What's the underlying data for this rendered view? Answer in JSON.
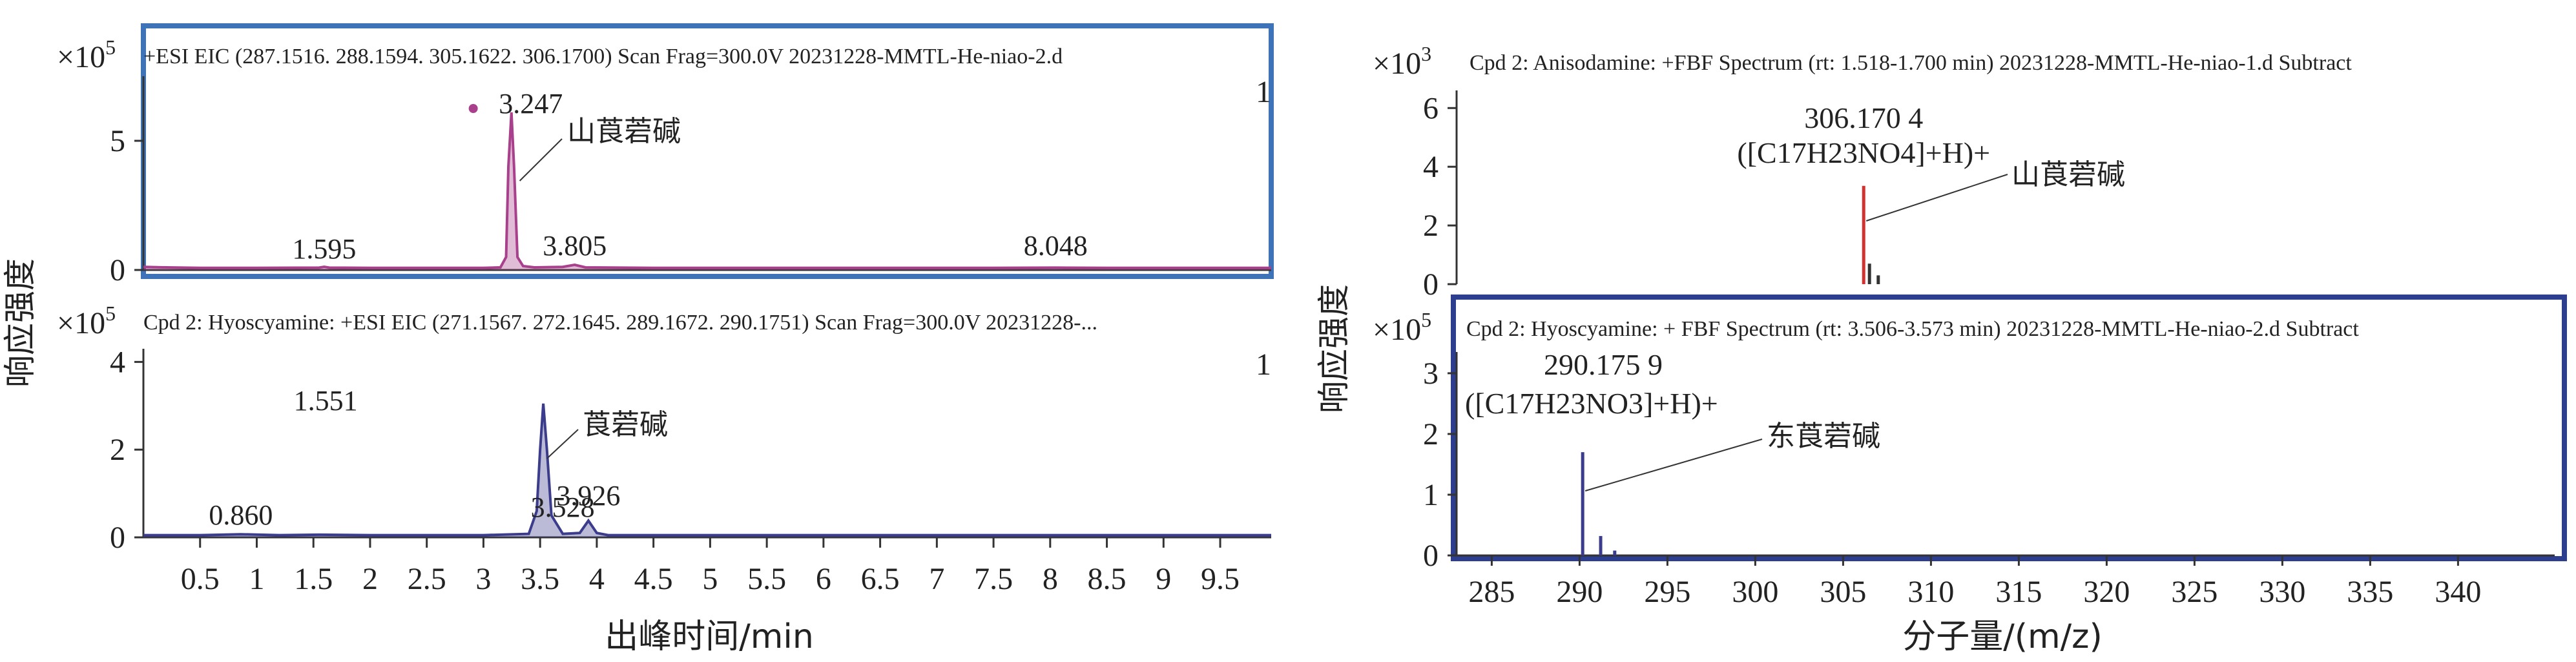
{
  "colors": {
    "chrom1": "#a8408c",
    "chrom2": "#3c3c8c",
    "spec1": "#d03232",
    "spec2": "#3c3c8c",
    "frame1": "#3f73b7",
    "frame2": "#2e3e8e",
    "axis": "#333333"
  },
  "left": {
    "ylabel": "响应强度",
    "xlabel": "出峰时间/min"
  },
  "right": {
    "ylabel": "响应强度",
    "xlabel": "分子量/(m/z)"
  },
  "chart_data": [
    {
      "type": "line",
      "id": "chrom-top",
      "title": "+ESI EIC (287.1516. 288.1594. 305.1622. 306.1700) Scan Frag=300.0V 20231228-MMTL-He-niao-2.d",
      "scale": "×10^5",
      "scale_base": "×10",
      "scale_exp": "5",
      "xlim": [
        0,
        9.95
      ],
      "ylim": [
        0,
        7.5
      ],
      "yticks": [
        0,
        5
      ],
      "series": [
        {
          "color_key": "chrom1",
          "x": [
            0.0,
            0.2,
            0.5,
            1.0,
            1.55,
            1.595,
            1.64,
            2.0,
            2.5,
            3.0,
            3.15,
            3.2,
            3.22,
            3.247,
            3.27,
            3.3,
            3.35,
            3.45,
            3.7,
            3.805,
            3.9,
            4.5,
            5.5,
            6.5,
            7.5,
            8.048,
            8.5,
            9.5,
            9.95
          ],
          "y": [
            0.12,
            0.1,
            0.08,
            0.08,
            0.09,
            0.12,
            0.09,
            0.08,
            0.08,
            0.08,
            0.1,
            0.5,
            4.0,
            6.1,
            4.0,
            0.5,
            0.15,
            0.1,
            0.12,
            0.2,
            0.1,
            0.08,
            0.08,
            0.08,
            0.08,
            0.09,
            0.08,
            0.08,
            0.08
          ]
        }
      ],
      "peak_labels": [
        {
          "x": 1.595,
          "text": "1.595"
        },
        {
          "x": 3.247,
          "text": "3.247"
        },
        {
          "x": 3.805,
          "text": "3.805"
        },
        {
          "x": 8.048,
          "text": "8.048"
        }
      ],
      "annotation": "山莨菪碱",
      "edge_marker": "1"
    },
    {
      "type": "line",
      "id": "chrom-bottom",
      "title": "Cpd 2: Hyoscyamine: +ESI EIC (271.1567. 272.1645. 289.1672. 290.1751) Scan Frag=300.0V 20231228-...",
      "scale": "×10^5",
      "scale_base": "×10",
      "scale_exp": "5",
      "xlim": [
        0,
        9.95
      ],
      "ylim": [
        0,
        4.3
      ],
      "yticks": [
        0,
        2,
        4
      ],
      "xticks": [
        0.5,
        1,
        1.5,
        2,
        2.5,
        3,
        3.5,
        4,
        4.5,
        5,
        5.5,
        6,
        6.5,
        7,
        7.5,
        8,
        8.5,
        9,
        9.5
      ],
      "series": [
        {
          "color_key": "chrom2",
          "x": [
            0.0,
            0.5,
            0.86,
            1.2,
            1.551,
            2.0,
            2.5,
            3.0,
            3.4,
            3.47,
            3.5,
            3.528,
            3.56,
            3.6,
            3.7,
            3.85,
            3.926,
            4.0,
            4.1,
            4.5,
            5.5,
            6.5,
            7.5,
            8.5,
            9.5,
            9.95
          ],
          "y": [
            0.05,
            0.05,
            0.07,
            0.05,
            0.06,
            0.05,
            0.05,
            0.05,
            0.08,
            0.6,
            2.0,
            3.05,
            2.0,
            0.5,
            0.08,
            0.1,
            0.38,
            0.1,
            0.05,
            0.05,
            0.05,
            0.05,
            0.05,
            0.05,
            0.05,
            0.05
          ]
        }
      ],
      "peak_labels": [
        {
          "x": 0.86,
          "text": "0.860"
        },
        {
          "x": 1.551,
          "text": "1.551"
        },
        {
          "x": 3.528,
          "text": "3.528"
        },
        {
          "x": 3.926,
          "text": "3.926"
        }
      ],
      "annotation": "莨菪碱",
      "edge_marker": "1"
    },
    {
      "type": "bar",
      "id": "spectrum-top",
      "title": "Cpd 2: Anisodamine: +FBF Spectrum (rt: 1.518-1.700 min) 20231228-MMTL-He-niao-1.d Subtract",
      "scale": "×10^3",
      "scale_base": "×10",
      "scale_exp": "3",
      "xlim": [
        283,
        345.5
      ],
      "ylim": [
        0,
        6.6
      ],
      "yticks": [
        0,
        2,
        4,
        6
      ],
      "peaks": [
        {
          "mz": 306.1704,
          "intensity": 3.35,
          "color_key": "spec1"
        },
        {
          "mz": 306.5,
          "intensity": 0.7,
          "color_key": "axis"
        },
        {
          "mz": 307.0,
          "intensity": 0.3,
          "color_key": "axis"
        }
      ],
      "peak_label": "306.170 4",
      "formula": "([C17H23NO4]+H)+",
      "annotation": "山莨菪碱"
    },
    {
      "type": "bar",
      "id": "spectrum-bottom",
      "title": "Cpd 2: Hyoscyamine: + FBF Spectrum (rt: 3.506-3.573 min) 20231228-MMTL-He-niao-2.d Subtract",
      "scale": "×10^5",
      "scale_base": "×10",
      "scale_exp": "5",
      "xlim": [
        283,
        345.5
      ],
      "ylim": [
        0,
        3.35
      ],
      "yticks": [
        0,
        1,
        2,
        3
      ],
      "xticks": [
        285,
        290,
        295,
        300,
        305,
        310,
        315,
        320,
        325,
        330,
        335,
        340
      ],
      "peaks": [
        {
          "mz": 290.1759,
          "intensity": 1.7,
          "color_key": "spec2"
        },
        {
          "mz": 291.2,
          "intensity": 0.32,
          "color_key": "spec2"
        },
        {
          "mz": 292.0,
          "intensity": 0.08,
          "color_key": "spec2"
        }
      ],
      "peak_label": "290.175 9",
      "formula": "([C17H23NO3]+H)+",
      "annotation": "东莨菪碱"
    }
  ]
}
